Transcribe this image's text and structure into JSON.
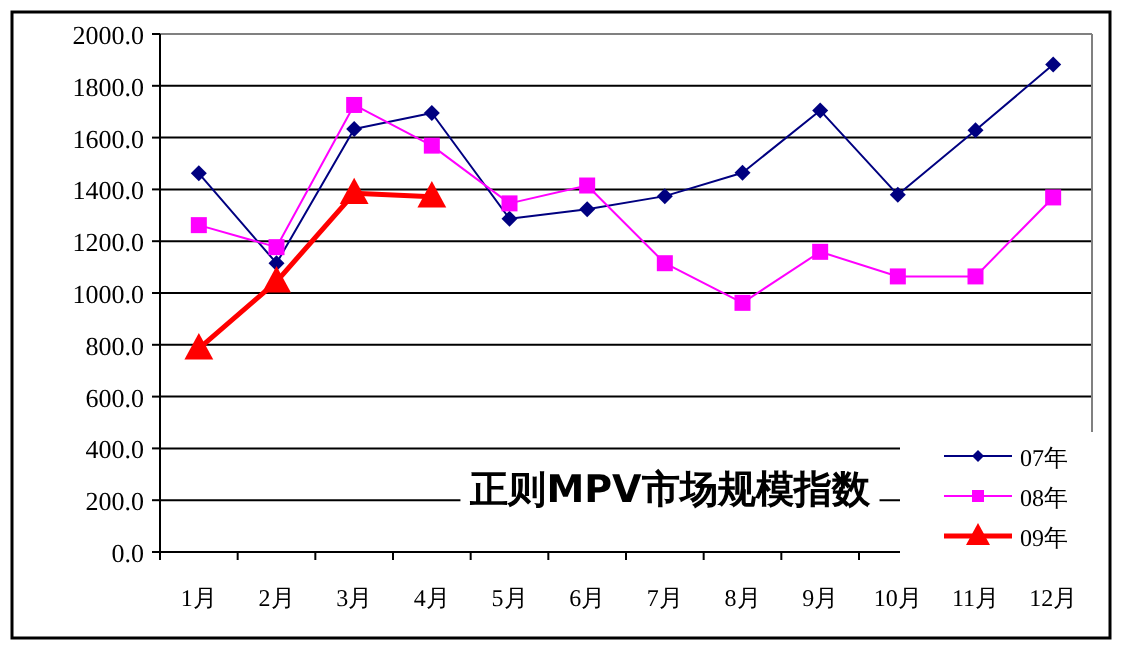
{
  "chart_data": {
    "type": "line",
    "title": "正则MPV市场规模指数",
    "categories": [
      "1月",
      "2月",
      "3月",
      "4月",
      "5月",
      "6月",
      "7月",
      "8月",
      "9月",
      "10月",
      "11月",
      "12月"
    ],
    "series": [
      {
        "name": "07年",
        "color": "#000080",
        "marker": "diamond",
        "values": [
          1462,
          1115,
          1633,
          1695,
          1287,
          1323,
          1374,
          1464,
          1705,
          1379,
          1628,
          1882
        ]
      },
      {
        "name": "08年",
        "color": "#ff00ff",
        "marker": "square",
        "values": [
          1262,
          1177,
          1726,
          1569,
          1346,
          1415,
          1115,
          962,
          1159,
          1064,
          1064,
          1369
        ]
      },
      {
        "name": "09年",
        "color": "#ff0000",
        "marker": "triangle",
        "values": [
          785,
          1044,
          1385,
          1372,
          null,
          null,
          null,
          null,
          null,
          null,
          null,
          null
        ]
      }
    ],
    "ylim": [
      0,
      2000
    ],
    "yticks": [
      {
        "value": 0,
        "label": "0.0"
      },
      {
        "value": 200,
        "label": "200.0"
      },
      {
        "value": 400,
        "label": "400.0"
      },
      {
        "value": 600,
        "label": "600.0"
      },
      {
        "value": 800,
        "label": "800.0"
      },
      {
        "value": 1000,
        "label": "1000.0"
      },
      {
        "value": 1200,
        "label": "1200.0"
      },
      {
        "value": 1400,
        "label": "1400.0"
      },
      {
        "value": 1600,
        "label": "1600.0"
      },
      {
        "value": 1800,
        "label": "1800.0"
      },
      {
        "value": 2000,
        "label": "2000.0"
      }
    ],
    "grid": "y",
    "legend": "bottom right"
  }
}
